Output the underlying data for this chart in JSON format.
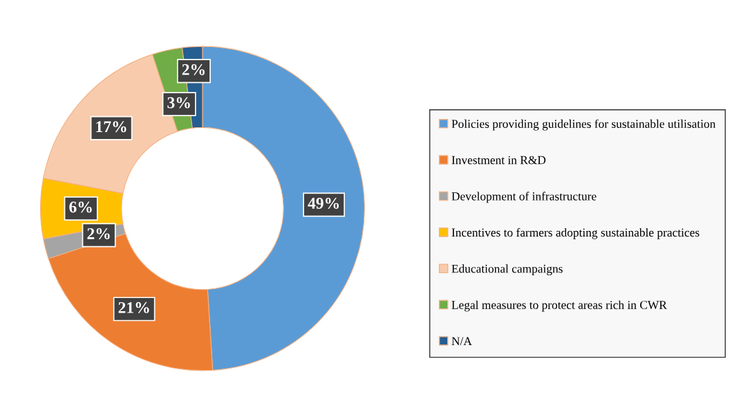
{
  "chart_data": {
    "type": "donut",
    "categories": [
      "Policies providing guidelines for sustainable utilisation",
      "Investment in R&D",
      "Development of infrastructure",
      "Incentives to farmers adopting sustainable practices",
      "Educational campaigns",
      "Legal measures to protect areas rich in CWR",
      "N/A"
    ],
    "values": [
      49,
      21,
      2,
      6,
      17,
      3,
      2
    ],
    "colors": [
      "#5b9bd5",
      "#ed7d31",
      "#a5a5a5",
      "#ffc000",
      "#f8cbad",
      "#70ad47",
      "#255e91"
    ],
    "value_labels": [
      "49%",
      "21%",
      "2%",
      "6%",
      "17%",
      "3%",
      "2%"
    ],
    "legend": "right"
  }
}
